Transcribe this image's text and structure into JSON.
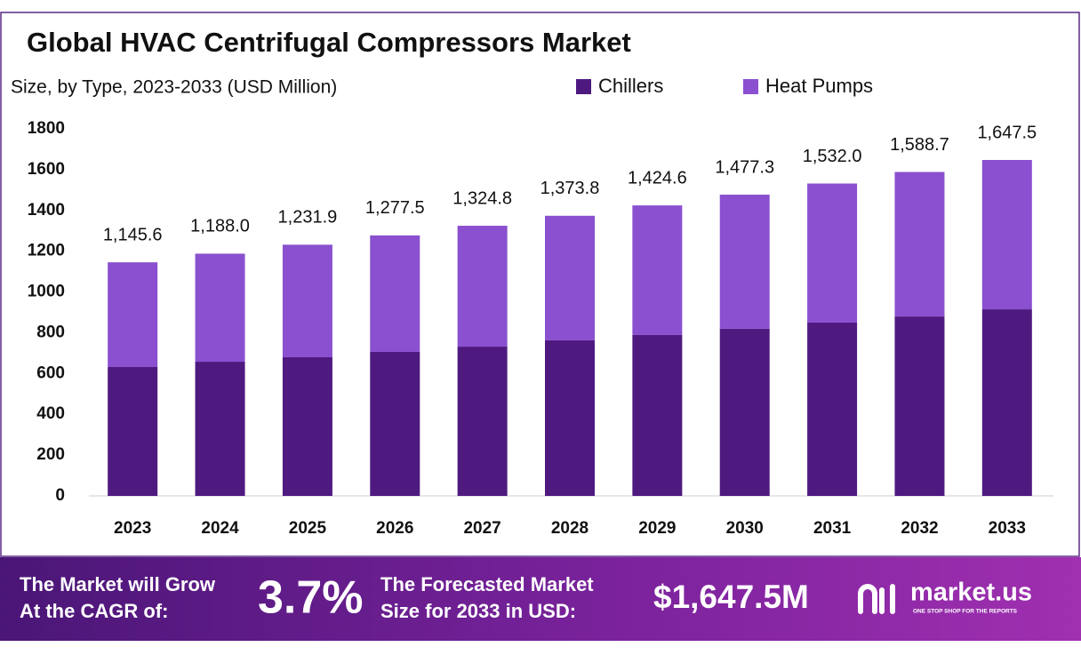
{
  "chart_data": {
    "type": "stacked_bar",
    "title": "Global HVAC Centrifugal Compressors Market",
    "subtitle": "Size, by Type, 2023-2033 (USD Million)",
    "categories": [
      "2023",
      "2024",
      "2025",
      "2026",
      "2027",
      "2028",
      "2029",
      "2030",
      "2031",
      "2032",
      "2033"
    ],
    "series": [
      {
        "name": "Chillers",
        "color": "#4e1a80",
        "values": [
          632,
          658,
          680,
          706,
          732,
          763,
          789,
          820,
          850,
          880,
          915
        ]
      },
      {
        "name": "Heat Pumps",
        "color": "#8a50cf",
        "values": [
          513.6,
          530,
          551.9,
          571.5,
          592.8,
          610.8,
          635.6,
          657.3,
          682,
          708.7,
          732.5
        ]
      }
    ],
    "totals": {
      "values": [
        1145.6,
        1188.0,
        1231.9,
        1277.5,
        1324.8,
        1373.8,
        1424.6,
        1477.3,
        1532.0,
        1588.7,
        1647.5
      ],
      "value_labels": [
        "1,145.6",
        "1,188.0",
        "1,231.9",
        "1,277.5",
        "1,324.8",
        "1,373.8",
        "1,424.6",
        "1,477.3",
        "1,532.0",
        "1,588.7",
        "1,647.5"
      ]
    },
    "ylim": [
      0,
      1800
    ],
    "yticks": [
      0,
      200,
      400,
      600,
      800,
      1000,
      1200,
      1400,
      1600,
      1800
    ],
    "grid": false
  },
  "banner": {
    "cagr_text": [
      "The Market will Grow",
      "At the CAGR of:"
    ],
    "cagr_value": "3.7%",
    "forecast_text": [
      "The Forecasted Market",
      "Size for 2033 in USD:"
    ],
    "forecast_value": "$1,647.5M",
    "brand": "market.us",
    "tagline": "ONE STOP SHOP FOR THE REPORTS"
  }
}
